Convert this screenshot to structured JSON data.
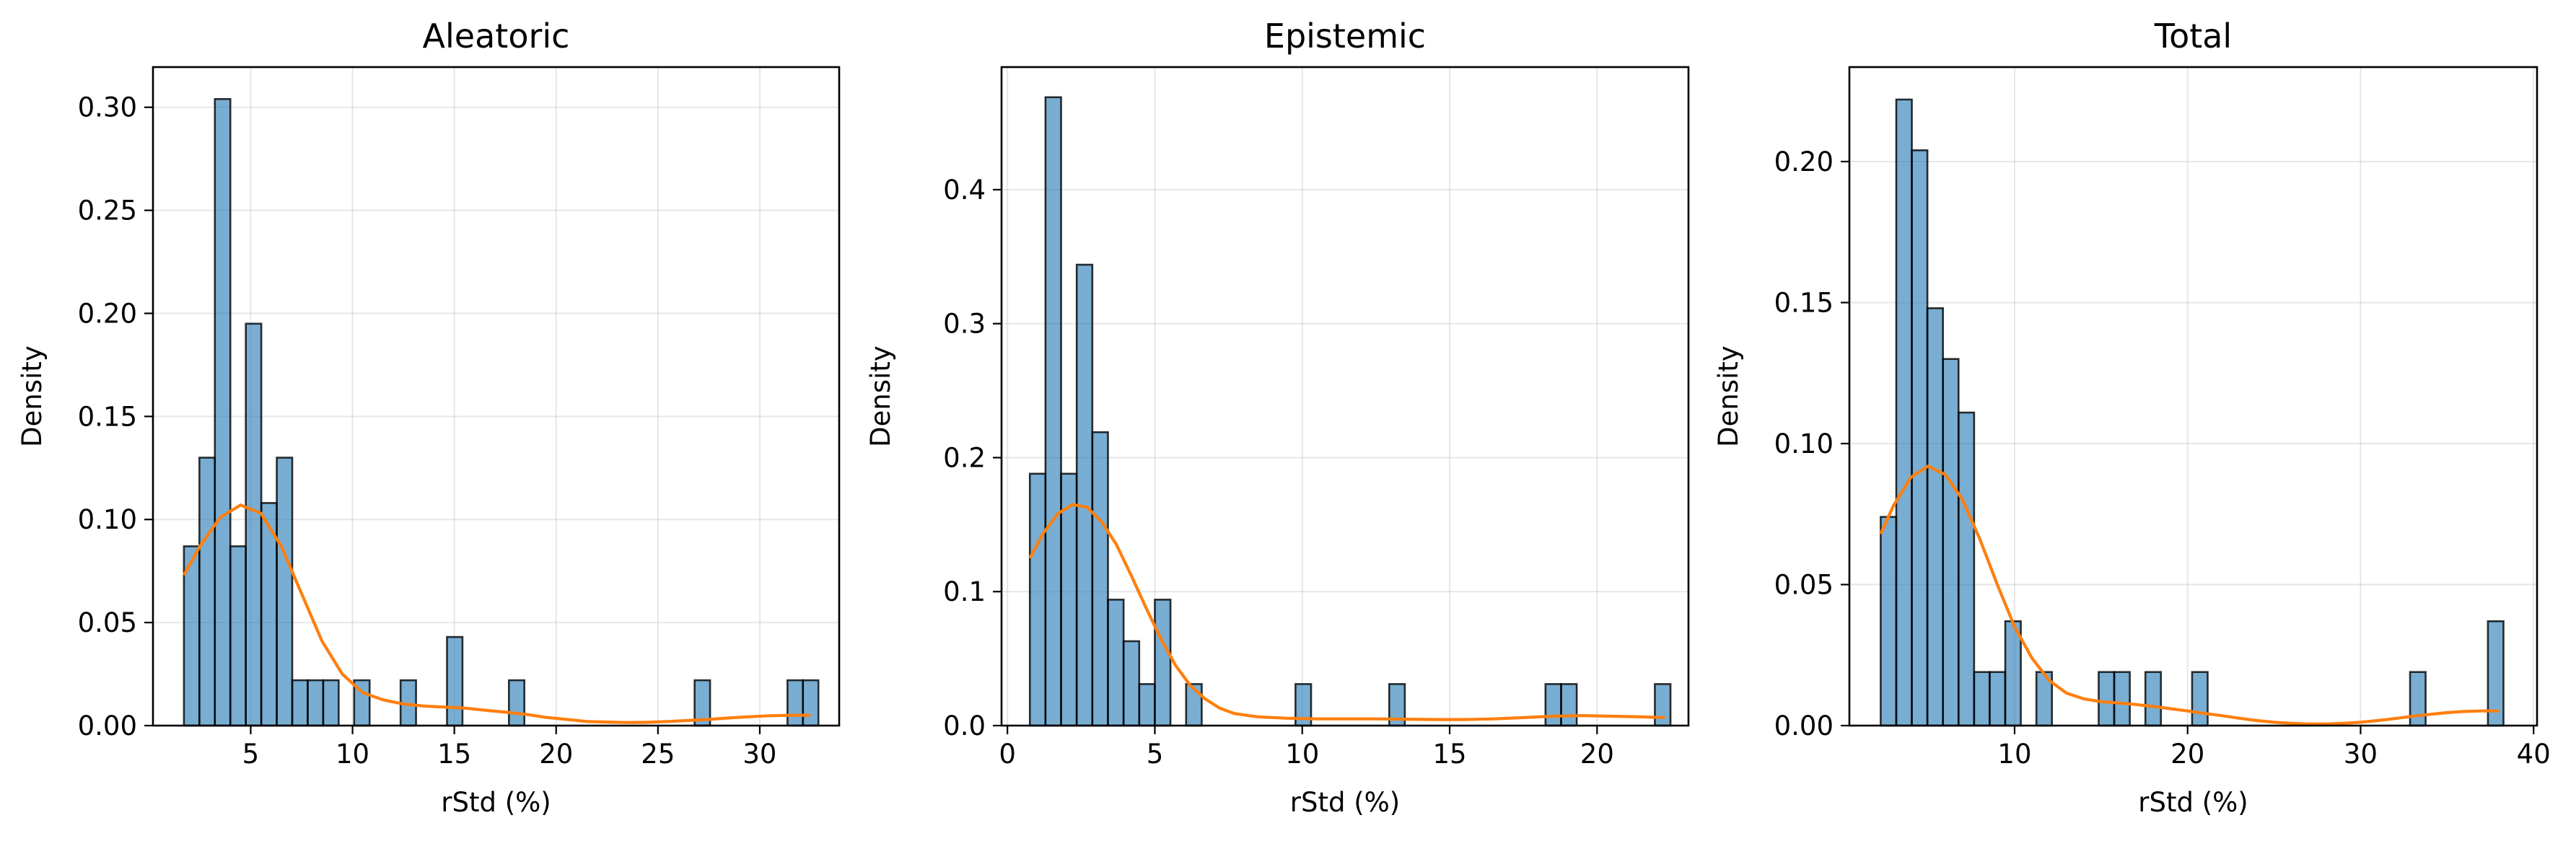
{
  "colors": {
    "bar_fill": "#1f77b4",
    "bar_fill_opacity": 0.6,
    "bar_edge": "#000000",
    "kde_line": "#ff7f0e",
    "grid": "#b0b0b0"
  },
  "chart_data": [
    {
      "type": "bar",
      "title": "Aleatoric",
      "xlabel": "rStd (%)",
      "ylabel": "Density",
      "xlim": [
        0.2,
        33.9
      ],
      "ylim": [
        0,
        0.3195
      ],
      "xticks": [
        5,
        10,
        15,
        20,
        25,
        30
      ],
      "xticklabels": [
        "5",
        "10",
        "15",
        "20",
        "25",
        "30"
      ],
      "yticks": [
        0,
        0.05,
        0.1,
        0.15,
        0.2,
        0.25,
        0.3
      ],
      "yticklabels": [
        "0.00",
        "0.05",
        "0.10",
        "0.15",
        "0.20",
        "0.25",
        "0.30"
      ],
      "grid": true,
      "histogram": {
        "bin_edges": [
          1.72,
          2.48,
          3.24,
          4.0,
          4.76,
          5.52,
          6.28,
          7.04,
          7.8,
          8.56,
          9.32,
          10.08,
          10.84,
          11.6,
          12.36,
          13.12,
          13.88,
          14.64,
          15.4,
          16.16,
          16.92,
          17.68,
          18.44,
          19.2,
          19.96,
          20.72,
          21.48,
          22.24,
          23.0,
          23.76,
          24.52,
          25.28,
          26.04,
          26.8,
          27.56,
          28.32,
          29.08,
          29.84,
          30.6,
          31.36,
          32.12,
          32.88
        ],
        "density": [
          0.087,
          0.13,
          0.304,
          0.087,
          0.195,
          0.108,
          0.13,
          0.022,
          0.022,
          0.022,
          0,
          0.022,
          0,
          0,
          0.022,
          0,
          0,
          0.043,
          0,
          0,
          0,
          0.022,
          0,
          0,
          0,
          0,
          0,
          0,
          0,
          0,
          0,
          0,
          0,
          0.022,
          0,
          0,
          0,
          0,
          0,
          0.022,
          0.022
        ]
      },
      "kde": {
        "x": [
          1.72,
          2.5,
          3.5,
          4.5,
          5.5,
          6.5,
          7.5,
          8.5,
          9.5,
          10.5,
          11.5,
          12.5,
          13.5,
          14.5,
          15.5,
          16.5,
          17.5,
          18.5,
          19.5,
          20.5,
          21.5,
          22.5,
          23.5,
          24.5,
          25.5,
          26.5,
          27.5,
          28.5,
          29.5,
          30.5,
          31.5,
          32.5
        ],
        "y": [
          0.073,
          0.087,
          0.101,
          0.107,
          0.103,
          0.087,
          0.064,
          0.041,
          0.025,
          0.016,
          0.0125,
          0.0105,
          0.0095,
          0.009,
          0.0085,
          0.0075,
          0.0065,
          0.0055,
          0.004,
          0.003,
          0.002,
          0.0017,
          0.0015,
          0.0016,
          0.002,
          0.0025,
          0.003,
          0.0037,
          0.0043,
          0.0048,
          0.005,
          0.005
        ]
      }
    },
    {
      "type": "bar",
      "title": "Epistemic",
      "xlabel": "rStd (%)",
      "ylabel": "Density",
      "xlim": [
        -0.2,
        23.1
      ],
      "ylim": [
        0,
        0.4915
      ],
      "xticks": [
        0,
        5,
        10,
        15,
        20
      ],
      "xticklabels": [
        "0",
        "5",
        "10",
        "15",
        "20"
      ],
      "yticks": [
        0,
        0.1,
        0.2,
        0.3,
        0.4
      ],
      "yticklabels": [
        "0.0",
        "0.1",
        "0.2",
        "0.3",
        "0.4"
      ],
      "grid": true,
      "histogram": {
        "bin_edges": [
          0.76,
          1.29,
          1.82,
          2.35,
          2.88,
          3.41,
          3.94,
          4.47,
          5.0,
          5.53,
          6.06,
          6.59,
          7.12,
          7.65,
          8.18,
          8.71,
          9.24,
          9.77,
          10.3,
          10.83,
          11.36,
          11.89,
          12.42,
          12.95,
          13.48,
          14.01,
          14.54,
          15.07,
          15.6,
          16.13,
          16.66,
          17.19,
          17.72,
          18.25,
          18.78,
          19.31,
          19.84,
          20.37,
          20.9,
          21.43,
          21.96,
          22.49
        ],
        "density": [
          0.188,
          0.469,
          0.188,
          0.344,
          0.219,
          0.094,
          0.063,
          0.031,
          0.094,
          0,
          0.031,
          0,
          0,
          0,
          0,
          0,
          0,
          0.031,
          0,
          0,
          0,
          0,
          0,
          0.031,
          0,
          0,
          0,
          0,
          0,
          0,
          0,
          0,
          0,
          0.031,
          0.031,
          0,
          0,
          0,
          0,
          0,
          0.031
        ]
      },
      "kde": {
        "x": [
          0.76,
          1.2,
          1.7,
          2.2,
          2.7,
          3.2,
          3.7,
          4.2,
          4.7,
          5.2,
          5.7,
          6.2,
          6.7,
          7.2,
          7.7,
          8.5,
          9.5,
          10.5,
          11.5,
          12.5,
          13.5,
          14.5,
          15.5,
          16.5,
          17.5,
          18.5,
          19.5,
          20.5,
          21.5,
          22.3
        ],
        "y": [
          0.125,
          0.143,
          0.158,
          0.165,
          0.163,
          0.152,
          0.135,
          0.112,
          0.088,
          0.065,
          0.045,
          0.03,
          0.02,
          0.013,
          0.009,
          0.0065,
          0.0055,
          0.005,
          0.005,
          0.005,
          0.0048,
          0.0045,
          0.0045,
          0.005,
          0.006,
          0.007,
          0.0075,
          0.007,
          0.0065,
          0.006
        ]
      }
    },
    {
      "type": "bar",
      "title": "Total",
      "xlabel": "rStd (%)",
      "ylabel": "Density",
      "xlim": [
        0.45,
        40.2
      ],
      "ylim": [
        0,
        0.2335
      ],
      "xticks": [
        10,
        20,
        30,
        40
      ],
      "xticklabels": [
        "10",
        "20",
        "30",
        "40"
      ],
      "yticks": [
        0,
        0.05,
        0.1,
        0.15,
        0.2
      ],
      "yticklabels": [
        "0.00",
        "0.05",
        "0.10",
        "0.15",
        "0.20"
      ],
      "grid": true,
      "histogram": {
        "bin_edges": [
          2.26,
          3.16,
          4.06,
          4.96,
          5.86,
          6.76,
          7.66,
          8.56,
          9.46,
          10.36,
          11.26,
          12.16,
          13.06,
          13.96,
          14.86,
          15.76,
          16.66,
          17.56,
          18.46,
          19.36,
          20.26,
          21.16,
          22.06,
          22.96,
          23.86,
          24.76,
          25.66,
          26.56,
          27.46,
          28.36,
          29.26,
          30.16,
          31.06,
          31.96,
          32.86,
          33.76,
          34.66,
          35.56,
          36.46,
          37.36,
          38.26
        ],
        "density": [
          0.074,
          0.222,
          0.204,
          0.148,
          0.13,
          0.111,
          0.019,
          0.019,
          0.037,
          0,
          0.019,
          0,
          0,
          0,
          0.019,
          0.019,
          0,
          0.019,
          0,
          0,
          0.019,
          0,
          0,
          0,
          0,
          0,
          0,
          0,
          0,
          0,
          0,
          0,
          0,
          0,
          0.019,
          0,
          0,
          0,
          0,
          0.037
        ]
      },
      "kde": {
        "x": [
          2.26,
          3.0,
          4.0,
          5.0,
          6.0,
          7.0,
          8.0,
          9.0,
          10.0,
          11.0,
          12.0,
          13.0,
          14.0,
          15.0,
          16.0,
          17.0,
          18.0,
          19.0,
          20.0,
          21.0,
          22.0,
          23.0,
          24.0,
          25.0,
          26.0,
          27.0,
          28.0,
          29.0,
          30.0,
          31.0,
          32.0,
          33.0,
          34.0,
          35.0,
          36.0,
          37.0,
          38.0
        ],
        "y": [
          0.068,
          0.078,
          0.088,
          0.092,
          0.089,
          0.08,
          0.066,
          0.05,
          0.035,
          0.024,
          0.016,
          0.0115,
          0.0095,
          0.0085,
          0.008,
          0.0075,
          0.0068,
          0.006,
          0.0052,
          0.0043,
          0.0035,
          0.0026,
          0.0018,
          0.0012,
          0.0008,
          0.0006,
          0.0006,
          0.0008,
          0.0012,
          0.0018,
          0.0025,
          0.0033,
          0.004,
          0.0046,
          0.005,
          0.0052,
          0.0052
        ]
      }
    }
  ]
}
